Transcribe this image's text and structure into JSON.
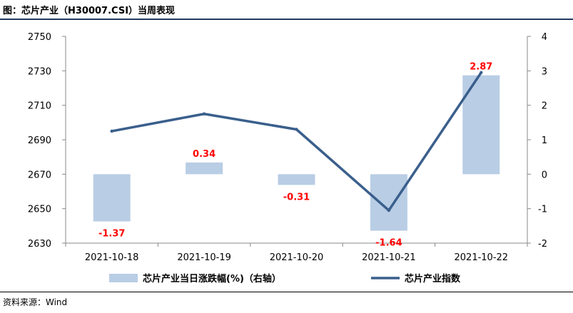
{
  "title": "图：芯片产业（H30007.CSI）当周表现",
  "source": "资料来源：Wind",
  "chart_data": {
    "type": "bar+line",
    "categories": [
      "2021-10-18",
      "2021-10-19",
      "2021-10-20",
      "2021-10-21",
      "2021-10-22"
    ],
    "series": [
      {
        "name": "芯片产业当日涨跌幅(%)（右轴）",
        "type": "bar",
        "axis": "right",
        "values": [
          -1.37,
          0.34,
          -0.31,
          -1.64,
          2.87
        ],
        "labels": [
          "-1.37",
          "0.34",
          "-0.31",
          "-1.64",
          "2.87"
        ],
        "color": "#b9cde5",
        "label_color": "#ff0000"
      },
      {
        "name": "芯片产业指数",
        "type": "line",
        "axis": "left",
        "values": [
          2695,
          2705,
          2696,
          2649,
          2729
        ],
        "color": "#3a5f8c"
      }
    ],
    "y_left": {
      "min": 2630,
      "max": 2750,
      "ticks": [
        "2630",
        "2650",
        "2670",
        "2690",
        "2710",
        "2730",
        "2750"
      ]
    },
    "y_right": {
      "min": -2,
      "max": 4,
      "ticks": [
        "-2",
        "-1",
        "0",
        "1",
        "2",
        "3",
        "4"
      ]
    },
    "grid": false,
    "legend": "bottom"
  }
}
